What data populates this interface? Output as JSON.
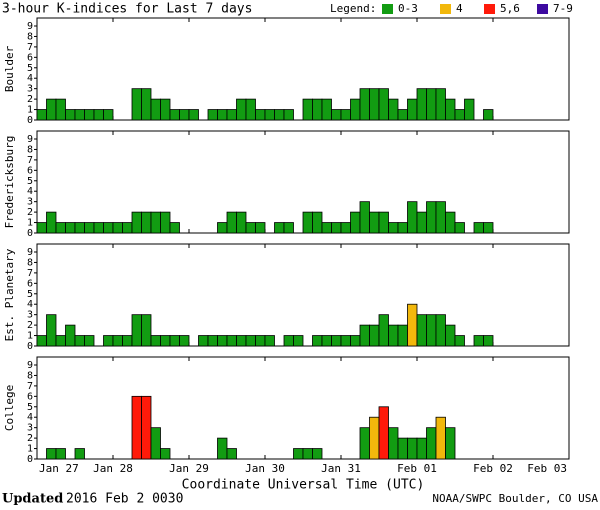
{
  "header": {
    "title": "3-hour K-indices for Last 7 days",
    "legend_title": "Legend:",
    "legend": [
      {
        "label": "0-3",
        "color": "#129c12"
      },
      {
        "label": "4",
        "color": "#f2b80c"
      },
      {
        "label": "5,6",
        "color": "#ff1a0a"
      },
      {
        "label": "7-9",
        "color": "#3d0aa0"
      }
    ]
  },
  "xticks": [
    "Jan 27",
    "Jan 28",
    "Jan 29",
    "Jan 30",
    "Jan 31",
    "Feb 01",
    "Feb 02",
    "Feb 03"
  ],
  "xlabel": "Coordinate Universal Time (UTC)",
  "footer": {
    "updated_label": "Updated",
    "updated_time": "2016 Feb  2 0030",
    "source": "NOAA/SWPC Boulder, CO USA"
  },
  "chart_data": [
    {
      "type": "bar",
      "ylabel": "Boulder",
      "ylim": [
        0,
        9
      ],
      "yticks": [
        0,
        1,
        2,
        3,
        4,
        5,
        6,
        7,
        8,
        9
      ],
      "values": [
        1,
        2,
        2,
        1,
        1,
        1,
        1,
        1,
        0,
        0,
        3,
        3,
        2,
        2,
        1,
        1,
        1,
        0,
        1,
        1,
        1,
        2,
        2,
        1,
        1,
        1,
        1,
        0,
        2,
        2,
        2,
        1,
        1,
        2,
        3,
        3,
        3,
        2,
        1,
        2,
        3,
        3,
        3,
        2,
        1,
        2,
        0,
        1,
        null,
        null,
        null,
        null,
        null,
        null,
        null,
        null
      ]
    },
    {
      "type": "bar",
      "ylabel": "Fredericksburg",
      "ylim": [
        0,
        9
      ],
      "yticks": [
        0,
        1,
        2,
        3,
        4,
        5,
        6,
        7,
        8,
        9
      ],
      "values": [
        1,
        2,
        1,
        1,
        1,
        1,
        1,
        1,
        1,
        1,
        2,
        2,
        2,
        2,
        1,
        0,
        0,
        0,
        0,
        1,
        2,
        2,
        1,
        1,
        0,
        1,
        1,
        0,
        2,
        2,
        1,
        1,
        1,
        2,
        3,
        2,
        2,
        1,
        1,
        3,
        2,
        3,
        3,
        2,
        1,
        0,
        1,
        1,
        null,
        null,
        null,
        null,
        null,
        null,
        null,
        null
      ]
    },
    {
      "type": "bar",
      "ylabel": "Est. Planetary",
      "ylim": [
        0,
        9
      ],
      "yticks": [
        0,
        1,
        2,
        3,
        4,
        5,
        6,
        7,
        8,
        9
      ],
      "values": [
        1,
        3,
        1,
        2,
        1,
        1,
        0,
        1,
        1,
        1,
        3,
        3,
        1,
        1,
        1,
        1,
        0,
        1,
        1,
        1,
        1,
        1,
        1,
        1,
        1,
        0,
        1,
        1,
        0,
        1,
        1,
        1,
        1,
        1,
        2,
        2,
        3,
        2,
        2,
        4,
        3,
        3,
        3,
        2,
        1,
        0,
        1,
        1,
        null,
        null,
        null,
        null,
        null,
        null,
        null,
        null
      ]
    },
    {
      "type": "bar",
      "ylabel": "College",
      "ylim": [
        0,
        9
      ],
      "yticks": [
        0,
        1,
        2,
        3,
        4,
        5,
        6,
        7,
        8,
        9
      ],
      "values": [
        0,
        1,
        1,
        0,
        1,
        0,
        0,
        0,
        0,
        0,
        6,
        6,
        3,
        1,
        0,
        0,
        0,
        0,
        0,
        2,
        1,
        0,
        0,
        0,
        0,
        0,
        0,
        1,
        1,
        1,
        0,
        0,
        0,
        0,
        3,
        4,
        5,
        3,
        2,
        2,
        2,
        3,
        4,
        3,
        0,
        0,
        0,
        0,
        null,
        null,
        null,
        null,
        null,
        null,
        null,
        null
      ]
    }
  ]
}
